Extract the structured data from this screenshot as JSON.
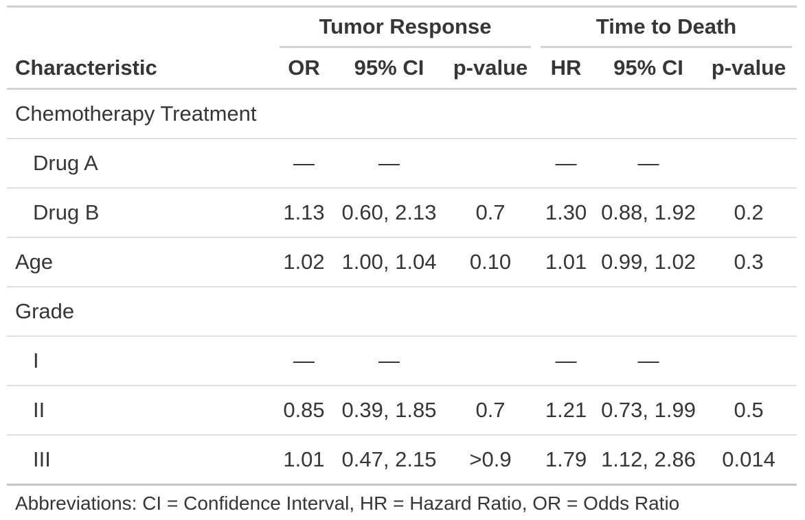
{
  "chart_data": {
    "type": "table",
    "stub_header": "Characteristic",
    "spanners": [
      {
        "label": "Tumor Response",
        "columns": [
          "OR",
          "95% CI",
          "p-value"
        ]
      },
      {
        "label": "Time to Death",
        "columns": [
          "HR",
          "95% CI",
          "p-value"
        ]
      }
    ],
    "columns": [
      "Characteristic",
      "OR",
      "95% CI",
      "p-value",
      "HR",
      "95% CI",
      "p-value"
    ],
    "rows": [
      {
        "label": "Chemotherapy Treatment",
        "indent": false,
        "cells": [
          "",
          "",
          "",
          "",
          "",
          ""
        ]
      },
      {
        "label": "Drug A",
        "indent": true,
        "cells": [
          "—",
          "—",
          "",
          "—",
          "—",
          ""
        ]
      },
      {
        "label": "Drug B",
        "indent": true,
        "cells": [
          "1.13",
          "0.60, 2.13",
          "0.7",
          "1.30",
          "0.88, 1.92",
          "0.2"
        ]
      },
      {
        "label": "Age",
        "indent": false,
        "cells": [
          "1.02",
          "1.00, 1.04",
          "0.10",
          "1.01",
          "0.99, 1.02",
          "0.3"
        ]
      },
      {
        "label": "Grade",
        "indent": false,
        "cells": [
          "",
          "",
          "",
          "",
          "",
          ""
        ]
      },
      {
        "label": "I",
        "indent": true,
        "cells": [
          "—",
          "—",
          "",
          "—",
          "—",
          ""
        ]
      },
      {
        "label": "II",
        "indent": true,
        "cells": [
          "0.85",
          "0.39, 1.85",
          "0.7",
          "1.21",
          "0.73, 1.99",
          "0.5"
        ]
      },
      {
        "label": "III",
        "indent": true,
        "cells": [
          "1.01",
          "0.47, 2.15",
          ">0.9",
          "1.79",
          "1.12, 2.86",
          "0.014"
        ]
      }
    ],
    "footer": "Abbreviations: CI = Confidence Interval, HR = Hazard Ratio, OR = Odds Ratio",
    "layout": {
      "legend_position": "none",
      "grid": "horizontal-rules"
    }
  },
  "colors": {
    "text": "#363636",
    "rule_light": "#d4d4d4",
    "rule_row": "#dfdfdf",
    "rule_bottom": "#a8a8a8",
    "background": "#ffffff"
  }
}
